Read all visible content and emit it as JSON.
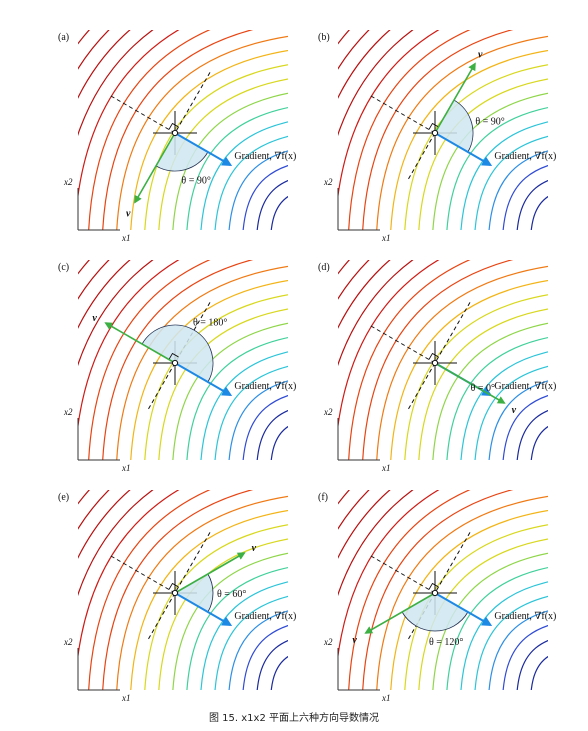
{
  "panels": [
    {
      "label": "(a)",
      "gradient_label": "Gradient, ∇f(x)",
      "theta_label": "θ = 90°",
      "v_label": "v",
      "v_angle_deg": 90,
      "side": -1
    },
    {
      "label": "(b)",
      "gradient_label": "Gradient, ∇f(x)",
      "theta_label": "θ = 90°",
      "v_label": "v",
      "v_angle_deg": 90,
      "side": 1
    },
    {
      "label": "(c)",
      "gradient_label": "Gradient, ∇f(x)",
      "theta_label": "θ = 180°",
      "v_label": "v",
      "v_angle_deg": 180,
      "side": 1
    },
    {
      "label": "(d)",
      "gradient_label": "Gradient, ∇f(x)",
      "theta_label": "θ = 0°",
      "v_label": "v",
      "v_angle_deg": 0,
      "side": 1
    },
    {
      "label": "(e)",
      "gradient_label": "Gradient, ∇f(x)",
      "theta_label": "θ = 60°",
      "v_label": "v",
      "v_angle_deg": 60,
      "side": 1
    },
    {
      "label": "(f)",
      "gradient_label": "Gradient, ∇f(x)",
      "theta_label": "θ = 120°",
      "v_label": "v",
      "v_angle_deg": 120,
      "side": -1
    }
  ],
  "axes": {
    "x_label": "x1",
    "y_label": "x2"
  },
  "caption": "图 15. x1x2 平面上六种方向导数情况",
  "colors": {
    "gradient_arrow": "#1e88e5",
    "v_arrow": "#3cb043",
    "angle_fill": "#cfe6f2",
    "contour_palette": [
      "#1a2a9e",
      "#2f4bd6",
      "#2d8fe6",
      "#2bc4d8",
      "#3fd19a",
      "#8fd64a",
      "#d8d81e",
      "#f3b416",
      "#f07a14",
      "#e84412",
      "#d11a14",
      "#b8100f"
    ]
  }
}
